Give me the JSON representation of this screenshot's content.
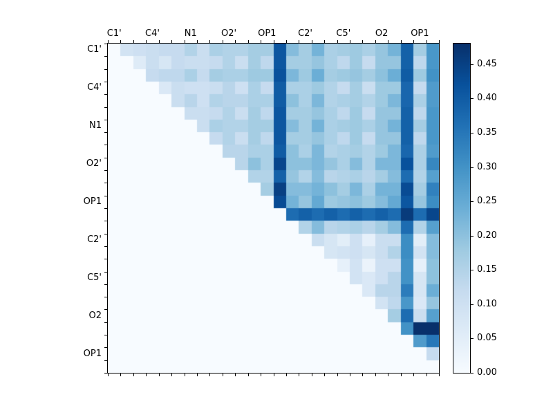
{
  "figure": {
    "background": "#ffffff",
    "frame_color": "#000000"
  },
  "chart_data": {
    "type": "heatmap",
    "title": "",
    "xlabel": "",
    "ylabel": "",
    "x_ticklabels": [
      "C1'",
      "C4'",
      "N1",
      "O2'",
      "OP1",
      "C2'",
      "C5'",
      "O2",
      "OP1"
    ],
    "y_ticklabels": [
      "C1'",
      "C4'",
      "N1",
      "O2'",
      "OP1",
      "C2'",
      "C5'",
      "O2",
      "OP1"
    ],
    "tick_cell_positions": [
      0,
      3,
      6,
      9,
      12,
      15,
      18,
      21,
      24
    ],
    "n_cells": 26,
    "vmin": 0.0,
    "vmax": 0.48,
    "colormap": {
      "name": "Blues",
      "stops": [
        {
          "t": 0.0,
          "color": "#f7fbff"
        },
        {
          "t": 0.125,
          "color": "#deebf7"
        },
        {
          "t": 0.25,
          "color": "#c6dbef"
        },
        {
          "t": 0.375,
          "color": "#9ecae1"
        },
        {
          "t": 0.5,
          "color": "#6baed6"
        },
        {
          "t": 0.625,
          "color": "#4292c6"
        },
        {
          "t": 0.75,
          "color": "#2171b5"
        },
        {
          "t": 0.875,
          "color": "#08519c"
        },
        {
          "t": 1.0,
          "color": "#08306b"
        }
      ]
    },
    "colorbar": {
      "tick_labels": [
        "0.00",
        "0.05",
        "0.10",
        "0.15",
        "0.20",
        "0.25",
        "0.30",
        "0.35",
        "0.40",
        "0.45"
      ],
      "tick_values": [
        0.0,
        0.05,
        0.1,
        0.15,
        0.2,
        0.25,
        0.3,
        0.35,
        0.4,
        0.45
      ]
    },
    "matrix": [
      [
        0,
        0.09,
        0.1,
        0.11,
        0.12,
        0.12,
        0.15,
        0.11,
        0.16,
        0.15,
        0.15,
        0.17,
        0.17,
        0.41,
        0.21,
        0.17,
        0.23,
        0.16,
        0.17,
        0.18,
        0.16,
        0.19,
        0.23,
        0.39,
        0.17,
        0.29
      ],
      [
        0,
        0,
        0.06,
        0.11,
        0.08,
        0.12,
        0.11,
        0.11,
        0.12,
        0.15,
        0.11,
        0.17,
        0.13,
        0.41,
        0.17,
        0.17,
        0.19,
        0.16,
        0.13,
        0.18,
        0.12,
        0.19,
        0.19,
        0.39,
        0.13,
        0.29
      ],
      [
        0,
        0,
        0,
        0.12,
        0.13,
        0.13,
        0.16,
        0.12,
        0.17,
        0.16,
        0.16,
        0.18,
        0.18,
        0.42,
        0.22,
        0.18,
        0.24,
        0.17,
        0.18,
        0.19,
        0.17,
        0.2,
        0.24,
        0.4,
        0.18,
        0.3
      ],
      [
        0,
        0,
        0,
        0,
        0.07,
        0.11,
        0.1,
        0.1,
        0.11,
        0.14,
        0.1,
        0.16,
        0.12,
        0.4,
        0.16,
        0.16,
        0.18,
        0.15,
        0.12,
        0.17,
        0.11,
        0.18,
        0.18,
        0.38,
        0.12,
        0.28
      ],
      [
        0,
        0,
        0,
        0,
        0,
        0.11,
        0.14,
        0.1,
        0.15,
        0.14,
        0.14,
        0.16,
        0.16,
        0.4,
        0.2,
        0.16,
        0.22,
        0.15,
        0.16,
        0.17,
        0.15,
        0.18,
        0.22,
        0.38,
        0.16,
        0.28
      ],
      [
        0,
        0,
        0,
        0,
        0,
        0,
        0.11,
        0.11,
        0.12,
        0.15,
        0.11,
        0.17,
        0.13,
        0.41,
        0.17,
        0.17,
        0.19,
        0.16,
        0.13,
        0.18,
        0.12,
        0.19,
        0.19,
        0.39,
        0.13,
        0.29
      ],
      [
        0,
        0,
        0,
        0,
        0,
        0,
        0,
        0.11,
        0.16,
        0.15,
        0.15,
        0.17,
        0.17,
        0.41,
        0.21,
        0.17,
        0.23,
        0.16,
        0.17,
        0.18,
        0.16,
        0.19,
        0.23,
        0.39,
        0.17,
        0.29
      ],
      [
        0,
        0,
        0,
        0,
        0,
        0,
        0,
        0,
        0.12,
        0.15,
        0.11,
        0.17,
        0.13,
        0.41,
        0.17,
        0.17,
        0.19,
        0.16,
        0.13,
        0.18,
        0.12,
        0.19,
        0.19,
        0.39,
        0.13,
        0.29
      ],
      [
        0,
        0,
        0,
        0,
        0,
        0,
        0,
        0,
        0,
        0.14,
        0.14,
        0.16,
        0.16,
        0.4,
        0.2,
        0.16,
        0.22,
        0.15,
        0.16,
        0.17,
        0.15,
        0.18,
        0.22,
        0.38,
        0.16,
        0.28
      ],
      [
        0,
        0,
        0,
        0,
        0,
        0,
        0,
        0,
        0,
        0,
        0.14,
        0.2,
        0.16,
        0.44,
        0.2,
        0.2,
        0.22,
        0.19,
        0.16,
        0.21,
        0.15,
        0.22,
        0.22,
        0.42,
        0.16,
        0.32
      ],
      [
        0,
        0,
        0,
        0,
        0,
        0,
        0,
        0,
        0,
        0,
        0,
        0.15,
        0.15,
        0.39,
        0.19,
        0.15,
        0.21,
        0.14,
        0.15,
        0.16,
        0.14,
        0.17,
        0.21,
        0.37,
        0.15,
        0.27
      ],
      [
        0,
        0,
        0,
        0,
        0,
        0,
        0,
        0,
        0,
        0,
        0,
        0,
        0.17,
        0.45,
        0.21,
        0.21,
        0.23,
        0.2,
        0.17,
        0.22,
        0.16,
        0.23,
        0.23,
        0.43,
        0.17,
        0.33
      ],
      [
        0,
        0,
        0,
        0,
        0,
        0,
        0,
        0,
        0,
        0,
        0,
        0,
        0,
        0.43,
        0.23,
        0.19,
        0.25,
        0.18,
        0.19,
        0.2,
        0.18,
        0.21,
        0.25,
        0.41,
        0.19,
        0.31
      ],
      [
        0,
        0,
        0,
        0,
        0,
        0,
        0,
        0,
        0,
        0,
        0,
        0,
        0,
        0,
        0.37,
        0.39,
        0.37,
        0.39,
        0.37,
        0.39,
        0.37,
        0.39,
        0.37,
        0.46,
        0.37,
        0.44
      ],
      [
        0,
        0,
        0,
        0,
        0,
        0,
        0,
        0,
        0,
        0,
        0,
        0,
        0,
        0,
        0,
        0.15,
        0.21,
        0.14,
        0.15,
        0.16,
        0.14,
        0.17,
        0.21,
        0.37,
        0.15,
        0.27
      ],
      [
        0,
        0,
        0,
        0,
        0,
        0,
        0,
        0,
        0,
        0,
        0,
        0,
        0,
        0,
        0,
        0,
        0.11,
        0.08,
        0.05,
        0.1,
        0.04,
        0.11,
        0.11,
        0.31,
        0.05,
        0.21
      ],
      [
        0,
        0,
        0,
        0,
        0,
        0,
        0,
        0,
        0,
        0,
        0,
        0,
        0,
        0,
        0,
        0,
        0,
        0.08,
        0.09,
        0.1,
        0.08,
        0.11,
        0.15,
        0.31,
        0.09,
        0.21
      ],
      [
        0,
        0,
        0,
        0,
        0,
        0,
        0,
        0,
        0,
        0,
        0,
        0,
        0,
        0,
        0,
        0,
        0,
        0,
        0.04,
        0.09,
        0.03,
        0.1,
        0.1,
        0.3,
        0.04,
        0.2
      ],
      [
        0,
        0,
        0,
        0,
        0,
        0,
        0,
        0,
        0,
        0,
        0,
        0,
        0,
        0,
        0,
        0,
        0,
        0,
        0,
        0.09,
        0.07,
        0.1,
        0.14,
        0.3,
        0.08,
        0.2
      ],
      [
        0,
        0,
        0,
        0,
        0,
        0,
        0,
        0,
        0,
        0,
        0,
        0,
        0,
        0,
        0,
        0,
        0,
        0,
        0,
        0,
        0.07,
        0.14,
        0.14,
        0.34,
        0.08,
        0.24
      ],
      [
        0,
        0,
        0,
        0,
        0,
        0,
        0,
        0,
        0,
        0,
        0,
        0,
        0,
        0,
        0,
        0,
        0,
        0,
        0,
        0,
        0,
        0.09,
        0.13,
        0.29,
        0.07,
        0.19
      ],
      [
        0,
        0,
        0,
        0,
        0,
        0,
        0,
        0,
        0,
        0,
        0,
        0,
        0,
        0,
        0,
        0,
        0,
        0,
        0,
        0,
        0,
        0,
        0.17,
        0.37,
        0.11,
        0.27
      ],
      [
        0,
        0,
        0,
        0,
        0,
        0,
        0,
        0,
        0,
        0,
        0,
        0,
        0,
        0,
        0,
        0,
        0,
        0,
        0,
        0,
        0,
        0,
        0,
        0.3,
        0.49,
        0.49
      ],
      [
        0,
        0,
        0,
        0,
        0,
        0,
        0,
        0,
        0,
        0,
        0,
        0,
        0,
        0,
        0,
        0,
        0,
        0,
        0,
        0,
        0,
        0,
        0,
        0,
        0.28,
        0.35
      ],
      [
        0,
        0,
        0,
        0,
        0,
        0,
        0,
        0,
        0,
        0,
        0,
        0,
        0,
        0,
        0,
        0,
        0,
        0,
        0,
        0,
        0,
        0,
        0,
        0,
        0,
        0.12
      ],
      [
        0,
        0,
        0,
        0,
        0,
        0,
        0,
        0,
        0,
        0,
        0,
        0,
        0,
        0,
        0,
        0,
        0,
        0,
        0,
        0,
        0,
        0,
        0,
        0,
        0,
        0
      ]
    ]
  }
}
